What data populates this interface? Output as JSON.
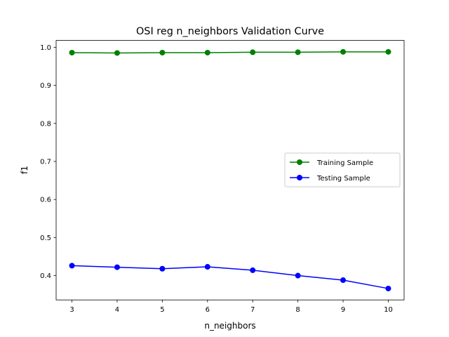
{
  "chart_data": {
    "type": "line",
    "title": "OSI reg n_neighbors Validation Curve",
    "xlabel": "n_neighbors",
    "ylabel": "f1",
    "x": [
      3,
      4,
      5,
      6,
      7,
      8,
      9,
      10
    ],
    "xticks": [
      "3",
      "4",
      "5",
      "6",
      "7",
      "8",
      "9",
      "10"
    ],
    "yticks": [
      "0.4",
      "0.5",
      "0.6",
      "0.7",
      "0.8",
      "0.9",
      "1.0"
    ],
    "xlim": [
      2.65,
      10.35
    ],
    "ylim": [
      0.336,
      1.018
    ],
    "grid": false,
    "legend_position": "center-right",
    "series": [
      {
        "name": "Training Sample",
        "color": "#008000",
        "marker": "circle",
        "values": [
          0.986,
          0.985,
          0.986,
          0.986,
          0.987,
          0.987,
          0.988,
          0.988
        ]
      },
      {
        "name": "Testing Sample",
        "color": "#0000ff",
        "marker": "circle",
        "values": [
          0.426,
          0.422,
          0.418,
          0.423,
          0.414,
          0.4,
          0.388,
          0.366
        ]
      }
    ]
  }
}
